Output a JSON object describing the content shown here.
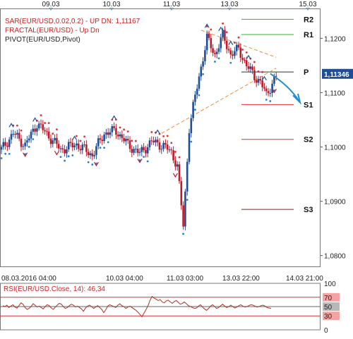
{
  "chart_data": [
    {
      "type": "candlestick",
      "symbol": "EURUSD",
      "indicators": {
        "sar_label": "SAR(EUR/USD,0.02,0.2) -  UP  DN: 1,11167",
        "fractal_label": "FRACTAL(EUR/USD) -  Up  Dn",
        "pivot_label": "PIVOT(EUR/USD,Pivot)"
      },
      "top_dates": [
        "09.03",
        "10.03",
        "11.03",
        "13.03",
        "15.03"
      ],
      "bottom_dates": [
        "08.03.2016 04:00",
        "10.03 04:00",
        "11.03 03:00",
        "13.03 22:00",
        "14.03 21:00"
      ],
      "ylim": [
        1.078,
        1.1255
      ],
      "y_ticks": [
        {
          "v": 1.12,
          "label": "1,1200"
        },
        {
          "v": 1.11,
          "label": "1,1100"
        },
        {
          "v": 1.1,
          "label": "1,1000"
        },
        {
          "v": 1.09,
          "label": "1,0900"
        },
        {
          "v": 1.08,
          "label": "1,0800"
        }
      ],
      "current_price": {
        "v": 1.11346,
        "label": "1,11346"
      },
      "pivot_levels": [
        {
          "name": "R2",
          "v": 1.1235,
          "color": "#2bb52b"
        },
        {
          "name": "R1",
          "v": 1.1207,
          "color": "#2bb52b"
        },
        {
          "name": "P",
          "v": 1.1138,
          "color": "#333333"
        },
        {
          "name": "S1",
          "v": 1.1078,
          "color": "#e03030"
        },
        {
          "name": "S2",
          "v": 1.1014,
          "color": "#e03030"
        },
        {
          "name": "S3",
          "v": 1.0885,
          "color": "#8b1a1a"
        }
      ],
      "series_colors": {
        "up": "#1f4e96",
        "down": "#c0192b",
        "sar_up": "#2a7fd4",
        "sar_down": "#e03030",
        "trend": "#f08a30",
        "forecast": "#1a8fd1"
      }
    },
    {
      "type": "line",
      "indicator_label": "RSI(EUR/USD.Close, 14): 46,34",
      "ylim": [
        0,
        100
      ],
      "y_ticks": [
        {
          "v": 100,
          "label": "100"
        },
        {
          "v": 70,
          "label": "70"
        },
        {
          "v": 50,
          "label": "50"
        },
        {
          "v": 30,
          "label": "30"
        },
        {
          "v": 0,
          "label": "0"
        }
      ],
      "levels": [
        70,
        50,
        30
      ],
      "values": [
        52,
        50,
        53,
        48,
        51,
        54,
        49,
        47,
        52,
        58,
        55,
        48,
        44,
        46,
        50,
        56,
        53,
        49,
        51,
        48,
        45,
        50,
        54,
        52,
        47,
        44,
        49,
        53,
        57,
        55,
        50,
        46,
        48,
        52,
        55,
        53,
        49,
        51,
        48,
        45,
        40,
        47,
        51,
        53,
        50,
        46,
        49,
        52,
        48,
        44,
        37,
        43,
        51,
        54,
        52,
        50,
        48,
        53,
        56,
        52,
        50,
        46,
        49,
        51,
        48,
        45,
        42,
        38,
        33,
        28,
        36,
        44,
        52,
        64,
        72,
        68,
        66,
        63,
        65,
        60,
        58,
        62,
        64,
        60,
        57,
        61,
        63,
        59,
        55,
        57,
        60,
        56,
        52,
        50,
        48,
        46,
        47,
        51,
        54,
        49,
        45,
        42,
        46,
        51,
        54,
        50,
        46,
        48,
        52,
        55,
        51,
        48,
        50,
        53,
        50,
        47,
        49,
        52,
        54,
        51,
        49,
        50,
        52,
        54,
        53,
        51,
        49,
        50,
        52,
        53,
        51,
        48,
        47,
        46
      ]
    }
  ]
}
